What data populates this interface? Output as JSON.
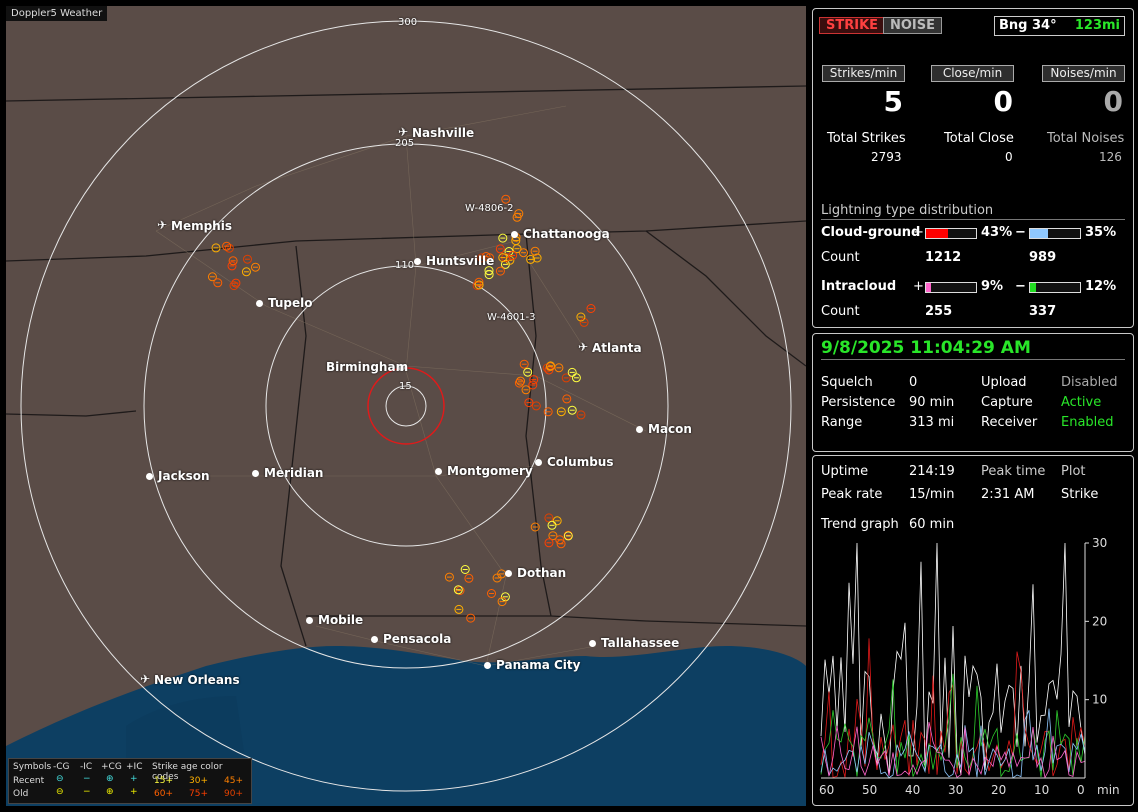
{
  "app": {
    "brand": "Doppler5 Weather"
  },
  "map": {
    "range_labels": [
      "300",
      "205",
      "110",
      "15"
    ],
    "station_labels": [
      "W-4806-2",
      "W-4601-3"
    ],
    "cities": [
      {
        "name": "Nashville",
        "icon": "airport"
      },
      {
        "name": "Memphis",
        "icon": "airport"
      },
      {
        "name": "Chattanooga",
        "icon": "dot"
      },
      {
        "name": "Huntsville",
        "icon": "dot"
      },
      {
        "name": "Tupelo",
        "icon": "dot"
      },
      {
        "name": "Atlanta",
        "icon": "airport"
      },
      {
        "name": "Birmingham",
        "icon": "dot"
      },
      {
        "name": "Macon",
        "icon": "dot"
      },
      {
        "name": "Jackson",
        "icon": "dot"
      },
      {
        "name": "Meridian",
        "icon": "dot"
      },
      {
        "name": "Montgomery",
        "icon": "dot"
      },
      {
        "name": "Columbus",
        "icon": "dot"
      },
      {
        "name": "Dothan",
        "icon": "dot"
      },
      {
        "name": "Mobile",
        "icon": "dot"
      },
      {
        "name": "Pensacola",
        "icon": "dot"
      },
      {
        "name": "Tallahassee",
        "icon": "dot"
      },
      {
        "name": "Panama City",
        "icon": "dot"
      },
      {
        "name": "New Orleans",
        "icon": "airport"
      }
    ],
    "legend": {
      "symbols_label": "Symbols",
      "headers": [
        "-CG",
        "-IC",
        "+CG",
        "+IC"
      ],
      "recent_label": "Recent",
      "old_label": "Old",
      "age_title": "Strike age color codes",
      "recent_ages": [
        "15+",
        "30+",
        "45+"
      ],
      "old_ages": [
        "60+",
        "75+",
        "90+"
      ],
      "age_colors": [
        "#ffff40",
        "#ffb000",
        "#ff8000",
        "#ff6000",
        "#ff4000",
        "#e04000"
      ]
    }
  },
  "status": {
    "strike_tag": "STRIKE",
    "noise_tag": "NOISE",
    "bearing": "Bng 34°",
    "range": "123mi",
    "rates": [
      {
        "label": "Strikes/min",
        "value": "5"
      },
      {
        "label": "Close/min",
        "value": "0"
      },
      {
        "label": "Noises/min",
        "value": "0"
      }
    ],
    "totals": [
      {
        "label": "Total Strikes",
        "value": "2793"
      },
      {
        "label": "Total Close",
        "value": "0"
      },
      {
        "label": "Total Noises",
        "value": "126"
      }
    ],
    "distribution_title": "Lightning type distribution",
    "cloud_ground": {
      "label": "Cloud-ground",
      "pos_sign": "+",
      "pos_pct": "43%",
      "pos_frac": 0.43,
      "neg_sign": "−",
      "neg_pct": "35%",
      "neg_frac": 0.35,
      "pos_color": "#ff0000",
      "neg_color": "#8fc8ff"
    },
    "cg_count": {
      "label": "Count",
      "pos": "1212",
      "neg": "989"
    },
    "intracloud": {
      "label": "Intracloud",
      "pos_sign": "+",
      "pos_pct": "9%",
      "pos_frac": 0.09,
      "neg_sign": "−",
      "neg_pct": "12%",
      "neg_frac": 0.12,
      "pos_color": "#ff66cc",
      "neg_color": "#22dd22"
    },
    "ic_count": {
      "label": "Count",
      "pos": "255",
      "neg": "337"
    }
  },
  "info": {
    "datetime": "9/8/2025 11:04:29 AM",
    "rows": [
      {
        "k1": "Squelch",
        "v1": "0",
        "k2": "Upload",
        "v2": "Disabled"
      },
      {
        "k1": "Persistence",
        "v1": "90 min",
        "k2": "Capture",
        "v2": "Active"
      },
      {
        "k1": "Range",
        "v1": "313 mi",
        "k2": "Receiver",
        "v2": "Enabled"
      }
    ]
  },
  "trend": {
    "uptime_label": "Uptime",
    "uptime": "214:19",
    "peak_time_label": "Peak time",
    "peak_time": "2:31 AM",
    "plot_label": "Plot",
    "peak_rate_label": "Peak rate",
    "peak_rate": "15/min",
    "plot_value": "Strike",
    "graph_label": "Trend graph",
    "graph_value": "60 min",
    "y_ticks": [
      "30",
      "20",
      "10"
    ],
    "x_ticks": [
      "60",
      "50",
      "40",
      "30",
      "20",
      "10",
      "0"
    ],
    "x_unit": "min"
  }
}
